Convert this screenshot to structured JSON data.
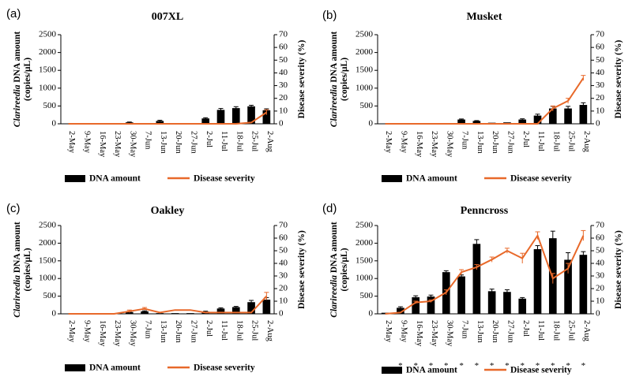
{
  "legend": {
    "bar_label": "DNA amount",
    "line_label": "Disease severity"
  },
  "y_label_left": {
    "italic": "Clarireedia",
    "rest": " DNA amount",
    "line2": "(copies/μL)"
  },
  "y_label_right": "Disease severity (%)",
  "chart_data": [
    {
      "type": "bar+line",
      "panel": "(a)",
      "title": "007XL",
      "categories": [
        "2-May",
        "9-May",
        "16-May",
        "23-May",
        "30-May",
        "7-Jun",
        "13-Jun",
        "20-Jun",
        "27-Jun",
        "2-Jul",
        "11-Jul",
        "18-Jul",
        "25-Jul",
        "2-Aug"
      ],
      "left_ticks": [
        "0",
        "500",
        "1000",
        "1500",
        "2000",
        "2500"
      ],
      "right_ticks": [
        "0",
        "10",
        "20",
        "30",
        "40",
        "50",
        "60",
        "70"
      ],
      "ylim_left": [
        0,
        2500
      ],
      "ylim_right": [
        0,
        70
      ],
      "series": [
        {
          "name": "DNA amount",
          "axis": "left",
          "kind": "bar",
          "values": [
            5,
            3,
            3,
            3,
            40,
            15,
            80,
            20,
            10,
            150,
            390,
            440,
            490,
            380
          ],
          "errors": [
            0,
            0,
            0,
            0,
            10,
            0,
            20,
            0,
            0,
            20,
            40,
            40,
            30,
            40
          ]
        },
        {
          "name": "Disease severity",
          "axis": "left-right",
          "kind": "line",
          "values": [
            0,
            0,
            0,
            0,
            0,
            0,
            0,
            0,
            0,
            0,
            0,
            0,
            1,
            9
          ],
          "errors": [
            0,
            0,
            0,
            0,
            0,
            0,
            0,
            0,
            0,
            0,
            0,
            0,
            0,
            2
          ]
        }
      ],
      "stars": []
    },
    {
      "type": "bar+line",
      "panel": "(b)",
      "title": "Musket",
      "categories": [
        "2-May",
        "9-May",
        "16-May",
        "23-May",
        "30-May",
        "7-Jun",
        "13-Jun",
        "20-Jun",
        "27-Jun",
        "2-Jul",
        "11-Jul",
        "18-Jul",
        "25-Jul",
        "2-Aug"
      ],
      "left_ticks": [
        "0",
        "500",
        "1000",
        "1500",
        "2000",
        "2500"
      ],
      "right_ticks": [
        "0",
        "10",
        "20",
        "30",
        "40",
        "50",
        "60",
        "70"
      ],
      "ylim_left": [
        0,
        2500
      ],
      "ylim_right": [
        0,
        70
      ],
      "series": [
        {
          "name": "DNA amount",
          "axis": "left",
          "kind": "bar",
          "values": [
            5,
            3,
            3,
            3,
            3,
            120,
            80,
            30,
            40,
            120,
            230,
            430,
            430,
            530
          ],
          "errors": [
            0,
            0,
            0,
            0,
            0,
            15,
            10,
            0,
            0,
            20,
            40,
            60,
            60,
            60
          ]
        },
        {
          "name": "Disease severity",
          "axis": "right",
          "kind": "line",
          "values": [
            0,
            0,
            0,
            0,
            0,
            0,
            0,
            0,
            0,
            0,
            0,
            12,
            18,
            36
          ],
          "errors": [
            0,
            0,
            0,
            0,
            0,
            0,
            0,
            0,
            0,
            0,
            0,
            2,
            2,
            2
          ]
        }
      ],
      "stars": []
    },
    {
      "type": "bar+line",
      "panel": "(c)",
      "title": "Oakley",
      "categories": [
        "2-May",
        "9-May",
        "16-May",
        "23-May",
        "30-May",
        "7-Jun",
        "13-Jun",
        "20-Jun",
        "27-Jun",
        "2-Jul",
        "11-Jul",
        "18-Jul",
        "25-Jul",
        "2-Aug"
      ],
      "left_ticks": [
        "0",
        "500",
        "1000",
        "1500",
        "2000",
        "2500"
      ],
      "right_ticks": [
        "0",
        "10",
        "20",
        "30",
        "40",
        "50",
        "60",
        "70"
      ],
      "ylim_left": [
        0,
        2500
      ],
      "ylim_right": [
        0,
        70
      ],
      "series": [
        {
          "name": "DNA amount",
          "axis": "left",
          "kind": "bar",
          "values": [
            3,
            20,
            3,
            3,
            50,
            70,
            20,
            20,
            20,
            60,
            150,
            190,
            330,
            400
          ],
          "errors": [
            0,
            0,
            0,
            0,
            15,
            15,
            0,
            0,
            0,
            15,
            20,
            20,
            50,
            60
          ]
        },
        {
          "name": "Disease severity",
          "axis": "right",
          "kind": "line",
          "values": [
            0,
            0,
            0,
            0,
            2,
            4,
            1,
            3,
            3,
            1,
            1,
            1,
            1,
            14
          ],
          "errors": [
            0,
            0,
            0,
            0,
            1,
            1,
            0,
            0,
            0,
            0,
            0,
            0,
            0,
            3
          ]
        }
      ],
      "stars": []
    },
    {
      "type": "bar+line",
      "panel": "(d)",
      "title": "Penncross",
      "categories": [
        "2-May",
        "9-May",
        "16-May",
        "23-May",
        "30-May",
        "7-Jun",
        "13-Jun",
        "20-Jun",
        "27-Jun",
        "2-Jul",
        "11-Jul",
        "18-Jul",
        "25-Jul",
        "2-Aug"
      ],
      "left_ticks": [
        "0",
        "500",
        "1000",
        "1500",
        "2000",
        "2500"
      ],
      "right_ticks": [
        "0",
        "10",
        "20",
        "30",
        "40",
        "50",
        "60",
        "70"
      ],
      "ylim_left": [
        0,
        2500
      ],
      "ylim_right": [
        0,
        70
      ],
      "series": [
        {
          "name": "DNA amount",
          "axis": "left",
          "kind": "bar",
          "values": [
            30,
            170,
            470,
            490,
            1180,
            1060,
            1980,
            640,
            620,
            430,
            1830,
            2140,
            1530,
            1670
          ],
          "errors": [
            0,
            30,
            40,
            40,
            40,
            40,
            120,
            60,
            60,
            30,
            100,
            200,
            200,
            90
          ]
        },
        {
          "name": "Disease severity",
          "axis": "right",
          "kind": "line",
          "values": [
            0,
            1,
            9,
            10,
            17,
            33,
            37,
            43,
            50,
            44,
            62,
            28,
            36,
            62
          ],
          "errors": [
            0,
            0,
            1,
            1,
            2,
            2,
            2,
            2,
            2,
            4,
            3,
            4,
            4,
            4
          ]
        }
      ],
      "stars": [
        "*",
        "*",
        "*",
        "*",
        "*",
        "*",
        "*",
        "*",
        "*",
        "*",
        "*",
        "*",
        "*"
      ]
    }
  ]
}
